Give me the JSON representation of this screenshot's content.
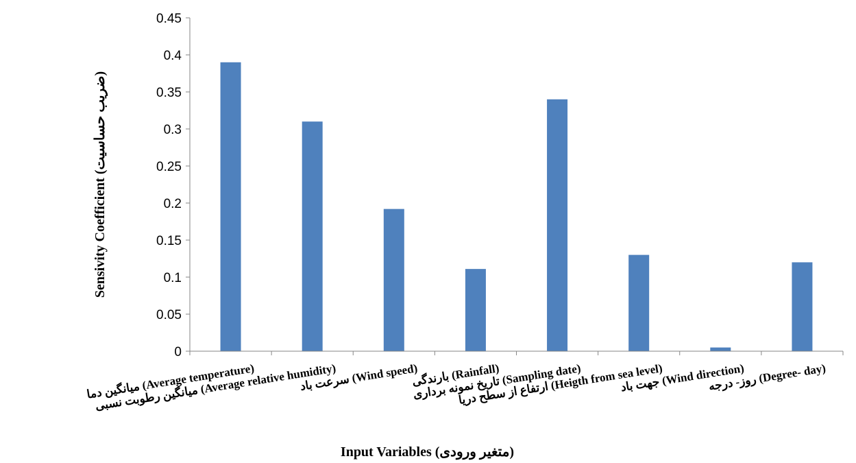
{
  "chart_data": {
    "type": "bar",
    "categories": [
      [
        "میانگین دما (Average temperature)"
      ],
      [
        "میانگین رطوبت نسبی (Average relative humidity)"
      ],
      [
        "سرعت باد (Wind speed)"
      ],
      [
        "بارندگی (Rainfall)"
      ],
      [
        "تاریخ نمونه برداری (Sampling date)"
      ],
      [
        "ارتفاع از سطح دریا (Heigth from sea level)"
      ],
      [
        "جهت باد (Wind direction)"
      ],
      [
        "روز- درجه (Degree- day)"
      ]
    ],
    "values": [
      0.39,
      0.31,
      0.192,
      0.111,
      0.34,
      0.13,
      0.005,
      0.12
    ],
    "xlabel": "Input Variables (متغیر ورودی)",
    "ylabel": "Sensivity Coefficient (ضریب حساسیت)",
    "ylim": [
      0,
      0.45
    ],
    "yticks": [
      "0",
      "0.05",
      "0.1",
      "0.15",
      "0.2",
      "0.25",
      "0.3",
      "0.35",
      "0.4",
      "0.45"
    ],
    "bar_color": "#4f81bd",
    "grid": false,
    "legend": "none"
  }
}
